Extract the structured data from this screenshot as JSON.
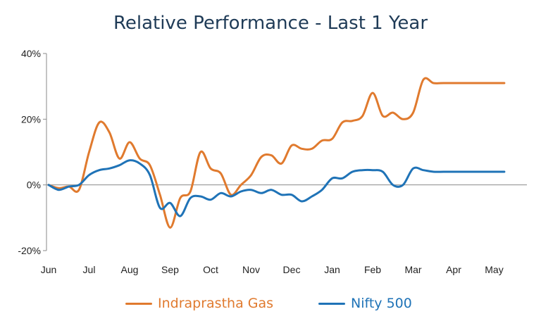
{
  "chart_data": {
    "type": "line",
    "title": "Relative Performance - Last 1 Year",
    "xlabel": "",
    "ylabel": "",
    "x_ticks": [
      "Jun",
      "Jul",
      "Aug",
      "Sep",
      "Oct",
      "Nov",
      "Dec",
      "Jan",
      "Feb",
      "Mar",
      "Apr",
      "May"
    ],
    "y_ticks": [
      "40%",
      "20%",
      "0%",
      "-20%"
    ],
    "ylim": [
      -20,
      40
    ],
    "grid": false,
    "legend_position": "bottom",
    "x": [
      0,
      0.25,
      0.5,
      0.75,
      1,
      1.25,
      1.5,
      1.75,
      2,
      2.25,
      2.5,
      2.75,
      3,
      3.25,
      3.5,
      3.75,
      4,
      4.25,
      4.5,
      4.75,
      5,
      5.25,
      5.5,
      5.75,
      6,
      6.25,
      6.5,
      6.75,
      7,
      7.25,
      7.5,
      7.75,
      8,
      8.25,
      8.5,
      8.75,
      9,
      9.25,
      9.5,
      9.75,
      10,
      10.25,
      10.5,
      10.75,
      11,
      11.25,
      11.5
    ],
    "series": [
      {
        "name": "Indraprastha Gas",
        "color": "#e07a2e",
        "values": [
          0,
          -1,
          -0.5,
          -1.5,
          10,
          19,
          16,
          8,
          13,
          8,
          6,
          -3,
          -13,
          -4,
          -2,
          10,
          5,
          3.5,
          -3,
          0,
          3,
          8.5,
          9,
          6.5,
          12,
          11,
          11,
          13.5,
          14,
          19,
          19.5,
          21,
          28,
          21,
          22,
          20,
          22,
          32,
          31,
          31,
          31,
          31,
          31,
          31,
          31,
          31,
          31
        ]
      },
      {
        "name": "Nifty 500",
        "color": "#1f73b7",
        "values": [
          0,
          -1.5,
          -0.5,
          0,
          3,
          4.5,
          5,
          6,
          7.5,
          6.5,
          3,
          -7,
          -5.5,
          -9.5,
          -4,
          -3.5,
          -4.5,
          -2.5,
          -3.5,
          -2,
          -1.5,
          -2.5,
          -1.5,
          -3,
          -3,
          -5,
          -3.5,
          -1.5,
          2,
          2,
          4,
          4.5,
          4.5,
          4,
          0,
          0,
          5,
          4.5,
          4,
          4,
          4,
          4,
          4,
          4,
          4,
          4,
          4
        ]
      }
    ]
  }
}
